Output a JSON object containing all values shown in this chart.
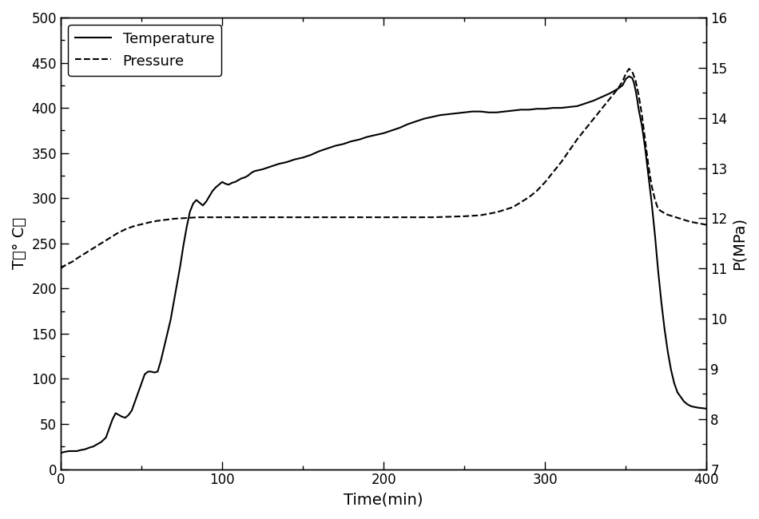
{
  "title": "",
  "xlabel": "Time(min)",
  "ylabel_left": "T（° C）",
  "ylabel_right": "P(MPa)",
  "xlim": [
    0,
    400
  ],
  "ylim_left": [
    0,
    500
  ],
  "ylim_right": [
    7,
    16
  ],
  "background_color": "#ffffff",
  "temp_color": "#000000",
  "pressure_color": "#000000",
  "temp_points": [
    [
      0,
      18
    ],
    [
      2,
      19
    ],
    [
      5,
      20
    ],
    [
      8,
      20
    ],
    [
      10,
      20
    ],
    [
      12,
      21
    ],
    [
      15,
      22
    ],
    [
      18,
      24
    ],
    [
      20,
      25
    ],
    [
      22,
      27
    ],
    [
      25,
      30
    ],
    [
      28,
      35
    ],
    [
      30,
      45
    ],
    [
      32,
      55
    ],
    [
      34,
      62
    ],
    [
      36,
      60
    ],
    [
      38,
      58
    ],
    [
      40,
      57
    ],
    [
      42,
      60
    ],
    [
      44,
      65
    ],
    [
      46,
      75
    ],
    [
      48,
      85
    ],
    [
      50,
      95
    ],
    [
      52,
      105
    ],
    [
      54,
      108
    ],
    [
      56,
      108
    ],
    [
      58,
      107
    ],
    [
      60,
      108
    ],
    [
      62,
      120
    ],
    [
      64,
      135
    ],
    [
      66,
      150
    ],
    [
      68,
      165
    ],
    [
      70,
      185
    ],
    [
      72,
      205
    ],
    [
      74,
      225
    ],
    [
      76,
      248
    ],
    [
      78,
      268
    ],
    [
      80,
      285
    ],
    [
      82,
      294
    ],
    [
      84,
      298
    ],
    [
      86,
      295
    ],
    [
      88,
      292
    ],
    [
      90,
      296
    ],
    [
      92,
      302
    ],
    [
      94,
      308
    ],
    [
      96,
      312
    ],
    [
      98,
      315
    ],
    [
      100,
      318
    ],
    [
      102,
      316
    ],
    [
      104,
      315
    ],
    [
      106,
      317
    ],
    [
      108,
      318
    ],
    [
      110,
      320
    ],
    [
      112,
      322
    ],
    [
      114,
      323
    ],
    [
      116,
      325
    ],
    [
      118,
      328
    ],
    [
      120,
      330
    ],
    [
      125,
      332
    ],
    [
      130,
      335
    ],
    [
      135,
      338
    ],
    [
      140,
      340
    ],
    [
      145,
      343
    ],
    [
      150,
      345
    ],
    [
      155,
      348
    ],
    [
      160,
      352
    ],
    [
      165,
      355
    ],
    [
      170,
      358
    ],
    [
      175,
      360
    ],
    [
      180,
      363
    ],
    [
      185,
      365
    ],
    [
      190,
      368
    ],
    [
      195,
      370
    ],
    [
      200,
      372
    ],
    [
      205,
      375
    ],
    [
      210,
      378
    ],
    [
      215,
      382
    ],
    [
      220,
      385
    ],
    [
      225,
      388
    ],
    [
      230,
      390
    ],
    [
      235,
      392
    ],
    [
      240,
      393
    ],
    [
      245,
      394
    ],
    [
      250,
      395
    ],
    [
      255,
      396
    ],
    [
      260,
      396
    ],
    [
      265,
      395
    ],
    [
      270,
      395
    ],
    [
      275,
      396
    ],
    [
      280,
      397
    ],
    [
      285,
      398
    ],
    [
      290,
      398
    ],
    [
      295,
      399
    ],
    [
      300,
      399
    ],
    [
      305,
      400
    ],
    [
      310,
      400
    ],
    [
      315,
      401
    ],
    [
      320,
      402
    ],
    [
      325,
      405
    ],
    [
      330,
      408
    ],
    [
      335,
      412
    ],
    [
      340,
      416
    ],
    [
      345,
      421
    ],
    [
      348,
      425
    ],
    [
      350,
      432
    ],
    [
      352,
      435
    ],
    [
      354,
      433
    ],
    [
      355,
      428
    ],
    [
      356,
      420
    ],
    [
      357,
      410
    ],
    [
      358,
      398
    ],
    [
      360,
      380
    ],
    [
      362,
      355
    ],
    [
      364,
      325
    ],
    [
      366,
      295
    ],
    [
      368,
      260
    ],
    [
      370,
      220
    ],
    [
      372,
      185
    ],
    [
      374,
      155
    ],
    [
      376,
      130
    ],
    [
      378,
      110
    ],
    [
      380,
      95
    ],
    [
      382,
      85
    ],
    [
      384,
      80
    ],
    [
      386,
      75
    ],
    [
      388,
      72
    ],
    [
      390,
      70
    ],
    [
      392,
      69
    ],
    [
      395,
      68
    ],
    [
      400,
      67
    ]
  ],
  "pressure_points": [
    [
      0,
      11.0
    ],
    [
      2,
      11.05
    ],
    [
      5,
      11.1
    ],
    [
      8,
      11.15
    ],
    [
      10,
      11.2
    ],
    [
      15,
      11.3
    ],
    [
      20,
      11.4
    ],
    [
      25,
      11.5
    ],
    [
      30,
      11.6
    ],
    [
      35,
      11.7
    ],
    [
      40,
      11.78
    ],
    [
      45,
      11.84
    ],
    [
      50,
      11.88
    ],
    [
      55,
      11.92
    ],
    [
      60,
      11.95
    ],
    [
      65,
      11.97
    ],
    [
      70,
      11.99
    ],
    [
      75,
      12.0
    ],
    [
      80,
      12.01
    ],
    [
      85,
      12.02
    ],
    [
      90,
      12.02
    ],
    [
      95,
      12.02
    ],
    [
      100,
      12.02
    ],
    [
      110,
      12.02
    ],
    [
      120,
      12.02
    ],
    [
      130,
      12.02
    ],
    [
      140,
      12.02
    ],
    [
      150,
      12.02
    ],
    [
      160,
      12.02
    ],
    [
      170,
      12.02
    ],
    [
      180,
      12.02
    ],
    [
      190,
      12.02
    ],
    [
      200,
      12.02
    ],
    [
      210,
      12.02
    ],
    [
      220,
      12.02
    ],
    [
      230,
      12.02
    ],
    [
      240,
      12.03
    ],
    [
      250,
      12.04
    ],
    [
      260,
      12.06
    ],
    [
      270,
      12.12
    ],
    [
      280,
      12.22
    ],
    [
      290,
      12.42
    ],
    [
      295,
      12.55
    ],
    [
      300,
      12.72
    ],
    [
      305,
      12.92
    ],
    [
      310,
      13.12
    ],
    [
      315,
      13.35
    ],
    [
      320,
      13.58
    ],
    [
      325,
      13.78
    ],
    [
      330,
      13.98
    ],
    [
      335,
      14.18
    ],
    [
      340,
      14.38
    ],
    [
      345,
      14.58
    ],
    [
      348,
      14.73
    ],
    [
      350,
      14.88
    ],
    [
      352,
      14.98
    ],
    [
      354,
      14.92
    ],
    [
      356,
      14.75
    ],
    [
      358,
      14.45
    ],
    [
      360,
      14.05
    ],
    [
      362,
      13.55
    ],
    [
      364,
      13.05
    ],
    [
      366,
      12.65
    ],
    [
      368,
      12.38
    ],
    [
      370,
      12.18
    ],
    [
      375,
      12.08
    ],
    [
      380,
      12.03
    ],
    [
      385,
      11.98
    ],
    [
      390,
      11.93
    ],
    [
      395,
      11.9
    ],
    [
      400,
      11.87
    ]
  ],
  "legend_loc": "upper left",
  "legend_fontsize": 13,
  "tick_fontsize": 12,
  "label_fontsize": 14
}
